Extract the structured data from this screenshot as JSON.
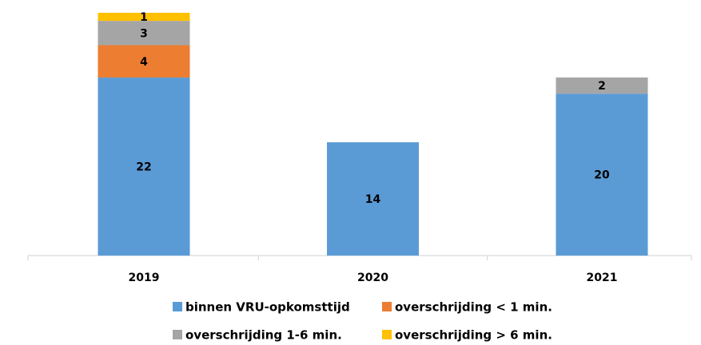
{
  "chart_data": {
    "type": "bar",
    "stacked": true,
    "categories": [
      "2019",
      "2020",
      "2021"
    ],
    "series": [
      {
        "name": "binnen VRU-opkomsttijd",
        "color": "#5b9bd5",
        "values": [
          22,
          14,
          20
        ]
      },
      {
        "name": "overschrijding < 1 min.",
        "color": "#ed7d31",
        "values": [
          4,
          null,
          null
        ]
      },
      {
        "name": "overschrijding 1-6 min.",
        "color": "#a5a5a5",
        "values": [
          3,
          null,
          2
        ]
      },
      {
        "name": "overschrijding > 6 min.",
        "color": "#ffc000",
        "values": [
          1,
          null,
          null
        ]
      }
    ],
    "legend": "bottom"
  }
}
